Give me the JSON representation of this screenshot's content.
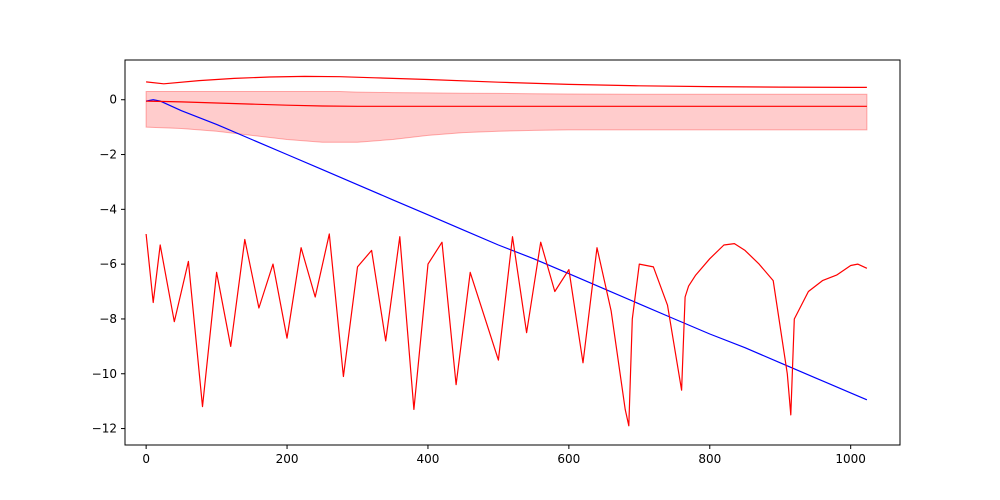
{
  "chart_data": {
    "type": "line",
    "title": "",
    "xlabel": "",
    "ylabel": "",
    "xlim": [
      -30,
      1070
    ],
    "ylim": [
      -12.6,
      1.45
    ],
    "grid": false,
    "legend": "none",
    "x_ticks": [
      0,
      200,
      400,
      600,
      800,
      1000
    ],
    "y_ticks": [
      0,
      -2,
      -4,
      -6,
      -8,
      -10,
      -12
    ],
    "x_tick_labels": [
      "0",
      "200",
      "400",
      "600",
      "800",
      "1000"
    ],
    "y_tick_labels": [
      "0",
      "−2",
      "−4",
      "−6",
      "−8",
      "−10",
      "−12"
    ],
    "colors": {
      "blue_series": "#0000ff",
      "red_series": "#ff0000",
      "band_fill": "#ff0000",
      "band_opacity": 0.2
    },
    "series": [
      {
        "style": "line",
        "color": "#0000ff",
        "x": [
          0,
          10,
          20,
          50,
          100,
          150,
          200,
          250,
          300,
          350,
          400,
          450,
          500,
          550,
          600,
          650,
          700,
          750,
          800,
          850,
          900,
          950,
          1000,
          1023
        ],
        "y": [
          -0.05,
          0.0,
          -0.05,
          -0.4,
          -0.9,
          -1.45,
          -2.0,
          -2.55,
          -3.1,
          -3.65,
          -4.2,
          -4.75,
          -5.3,
          -5.8,
          -6.35,
          -6.9,
          -7.45,
          -8.0,
          -8.55,
          -9.05,
          -9.6,
          -10.15,
          -10.7,
          -10.95
        ]
      },
      {
        "style": "line",
        "color": "#ff0000",
        "x": [
          0,
          10,
          20,
          40,
          60,
          80,
          100,
          120,
          140,
          160,
          180,
          200,
          220,
          240,
          260,
          280,
          300,
          320,
          340,
          360,
          380,
          400,
          420,
          440,
          460,
          480,
          500,
          520,
          540,
          560,
          580,
          600,
          620,
          640,
          660,
          680,
          685,
          690,
          700,
          720,
          740,
          760,
          765,
          770,
          780,
          800,
          820,
          835,
          850,
          870,
          890,
          910,
          915,
          920,
          940,
          960,
          980,
          1000,
          1010,
          1023
        ],
        "y": [
          -4.9,
          -7.4,
          -5.3,
          -8.1,
          -5.9,
          -11.2,
          -6.3,
          -9.0,
          -5.1,
          -7.6,
          -6.0,
          -8.7,
          -5.4,
          -7.2,
          -4.9,
          -10.1,
          -6.1,
          -5.5,
          -8.8,
          -5.0,
          -11.3,
          -6.0,
          -5.2,
          -10.4,
          -6.3,
          -7.9,
          -9.5,
          -5.0,
          -8.5,
          -5.2,
          -7.0,
          -6.2,
          -9.6,
          -5.4,
          -7.7,
          -11.3,
          -11.9,
          -8.0,
          -6.0,
          -6.1,
          -7.5,
          -10.6,
          -7.2,
          -6.8,
          -6.4,
          -5.8,
          -5.3,
          -5.25,
          -5.5,
          -6.0,
          -6.6,
          -10.0,
          -11.5,
          -8.0,
          -7.0,
          -6.6,
          -6.4,
          -6.05,
          -6.0,
          -6.15
        ]
      },
      {
        "style": "line",
        "color": "#ff0000",
        "x": [
          0,
          25,
          75,
          125,
          175,
          225,
          275,
          325,
          400,
          500,
          600,
          700,
          800,
          900,
          1000,
          1023
        ],
        "y": [
          0.65,
          0.58,
          0.7,
          0.78,
          0.83,
          0.85,
          0.84,
          0.8,
          0.74,
          0.64,
          0.56,
          0.51,
          0.48,
          0.46,
          0.45,
          0.45
        ]
      },
      {
        "style": "line",
        "color": "#ff0000",
        "x": [
          0,
          50,
          100,
          150,
          200,
          250,
          300,
          400,
          500,
          600,
          700,
          800,
          900,
          1000,
          1023
        ],
        "y": [
          -0.05,
          -0.08,
          -0.12,
          -0.16,
          -0.2,
          -0.23,
          -0.24,
          -0.24,
          -0.24,
          -0.24,
          -0.24,
          -0.24,
          -0.24,
          -0.24,
          -0.24
        ]
      },
      {
        "style": "band",
        "color": "#ff0000",
        "x": [
          0,
          50,
          100,
          150,
          200,
          250,
          275,
          300,
          350,
          400,
          450,
          500,
          550,
          600,
          700,
          800,
          900,
          1000,
          1023
        ],
        "upper": [
          0.3,
          0.3,
          0.3,
          0.3,
          0.3,
          0.3,
          0.3,
          0.28,
          0.26,
          0.25,
          0.24,
          0.23,
          0.22,
          0.21,
          0.2,
          0.2,
          0.2,
          0.2,
          0.2
        ],
        "lower": [
          -1.0,
          -1.05,
          -1.15,
          -1.3,
          -1.45,
          -1.55,
          -1.55,
          -1.55,
          -1.45,
          -1.3,
          -1.2,
          -1.15,
          -1.12,
          -1.1,
          -1.1,
          -1.1,
          -1.1,
          -1.1,
          -1.1
        ]
      }
    ]
  }
}
